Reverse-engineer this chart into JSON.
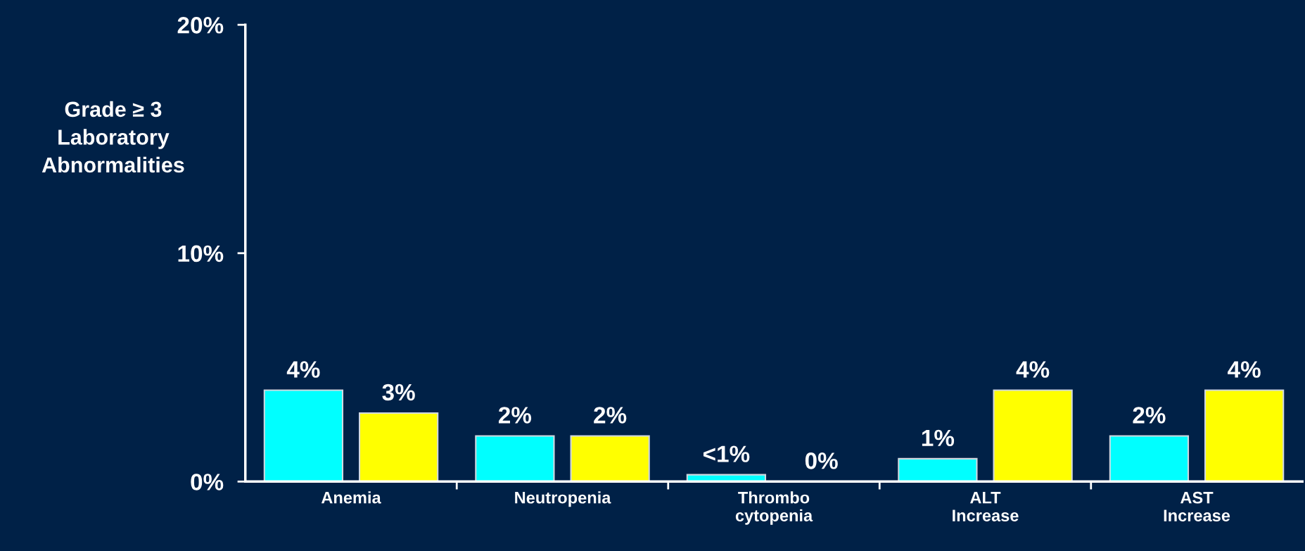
{
  "chart_data": {
    "type": "bar",
    "ylabel": "Grade ≥ 3\nLaboratory\nAbnormalities",
    "categories": [
      "Anemia",
      "Neutropenia",
      "Thrombo\ncytopenia",
      "ALT\nIncrease",
      "AST\nIncrease"
    ],
    "series": [
      {
        "color": "#00ffff",
        "values": [
          4,
          2,
          0.3,
          1,
          2
        ],
        "value_labels": [
          "4%",
          "2%",
          "<1%",
          "1%",
          "2%"
        ]
      },
      {
        "color": "#ffff00",
        "values": [
          3,
          2,
          0,
          4,
          4
        ],
        "value_labels": [
          "3%",
          "2%",
          "0%",
          "4%",
          "4%"
        ]
      }
    ],
    "ylim": [
      0,
      20
    ],
    "yticks": [
      {
        "value": 0,
        "label": "0%"
      },
      {
        "value": 10,
        "label": "10%"
      },
      {
        "value": 20,
        "label": "20%"
      }
    ],
    "grid": false,
    "legend": false
  }
}
